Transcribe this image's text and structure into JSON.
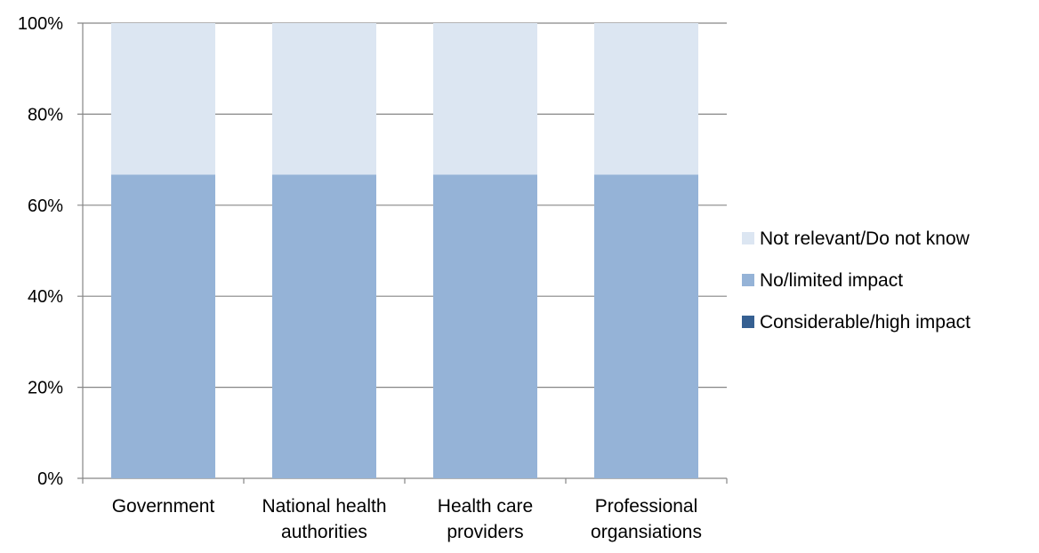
{
  "chart_data": {
    "type": "bar",
    "stacked": true,
    "percent": true,
    "categories": [
      [
        "Government"
      ],
      [
        "National health",
        "authorities"
      ],
      [
        "Health care",
        "providers"
      ],
      [
        "Professional",
        "organsiations"
      ]
    ],
    "series": [
      {
        "name": "Considerable/high impact",
        "values": [
          0,
          0,
          0,
          0
        ],
        "color": "#366092"
      },
      {
        "name": "No/limited impact",
        "values": [
          66.7,
          66.7,
          66.7,
          66.7
        ],
        "color": "#95b3d7"
      },
      {
        "name": "Not relevant/Do not know",
        "values": [
          33.3,
          33.3,
          33.3,
          33.3
        ],
        "color": "#dce6f2"
      }
    ],
    "yticks": [
      "0%",
      "20%",
      "40%",
      "60%",
      "80%",
      "100%"
    ],
    "ylim": [
      0,
      100
    ],
    "grid": true,
    "legend_position": "right",
    "legend_order": [
      "Not relevant/Do not know",
      "No/limited impact",
      "Considerable/high impact"
    ],
    "axis_color": "#868686"
  }
}
